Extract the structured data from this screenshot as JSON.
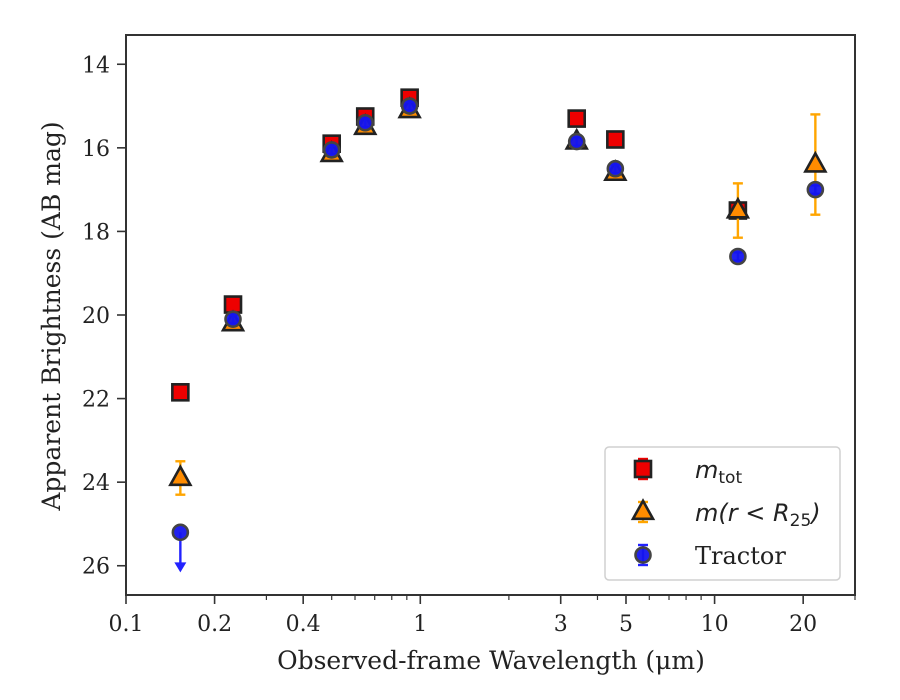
{
  "chart_data": {
    "type": "scatter",
    "xlabel": "Observed-frame Wavelength (μm)",
    "ylabel": "Apparent Brightness (AB mag)",
    "x_scale": "log",
    "xlim": [
      0.1,
      30
    ],
    "ylim": [
      26.7,
      13.3
    ],
    "y_inverted": true,
    "x_ticks": [
      0.1,
      0.2,
      0.4,
      1,
      3,
      5,
      10,
      20
    ],
    "x_tick_labels": [
      "0.1",
      "0.2",
      "0.4",
      "1",
      "3",
      "5",
      "10",
      "20"
    ],
    "y_ticks": [
      14,
      16,
      18,
      20,
      22,
      24,
      26
    ],
    "y_tick_labels": [
      "14",
      "16",
      "18",
      "20",
      "22",
      "24",
      "26"
    ],
    "legend_position": "lower-right",
    "series": [
      {
        "name": "m_tot",
        "legend": {
          "symbol": "m",
          "subscript": "tot"
        },
        "marker": "square",
        "face_color": "#ee0000",
        "edge_color": "#222222",
        "error_color": "#ee0000",
        "points": [
          {
            "x": 0.153,
            "y": 21.85,
            "err": 0.1
          },
          {
            "x": 0.231,
            "y": 19.75,
            "err": 0.1
          },
          {
            "x": 0.5,
            "y": 15.9,
            "err": 0.1
          },
          {
            "x": 0.65,
            "y": 15.25,
            "err": 0.1
          },
          {
            "x": 0.92,
            "y": 14.8,
            "err": 0.1
          },
          {
            "x": 3.4,
            "y": 15.3,
            "err": 0.1
          },
          {
            "x": 4.6,
            "y": 15.8,
            "err": 0.1
          },
          {
            "x": 12.0,
            "y": 17.5,
            "err": 0.1
          }
        ]
      },
      {
        "name": "m(r < R25)",
        "legend": {
          "prefix": "m(r < R",
          "subscript": "25",
          "suffix": ")"
        },
        "marker": "triangle",
        "face_color": "#ff8c00",
        "edge_color": "#222222",
        "error_color": "#ffa500",
        "points": [
          {
            "x": 0.153,
            "y": 23.9,
            "err": 0.4
          },
          {
            "x": 0.231,
            "y": 20.2,
            "err": 0.1
          },
          {
            "x": 0.5,
            "y": 16.15,
            "err": 0.1
          },
          {
            "x": 0.65,
            "y": 15.5,
            "err": 0.1
          },
          {
            "x": 0.92,
            "y": 15.1,
            "err": 0.1
          },
          {
            "x": 3.4,
            "y": 15.85,
            "err": 0.1
          },
          {
            "x": 4.6,
            "y": 16.6,
            "err": 0.1
          },
          {
            "x": 12.0,
            "y": 17.5,
            "err": 0.65
          },
          {
            "x": 22.0,
            "y": 16.4,
            "err": 1.2
          }
        ]
      },
      {
        "name": "Tractor",
        "legend": {
          "label": "Tractor"
        },
        "marker": "circle",
        "face_color": "#1515ee",
        "edge_color": "#444444",
        "error_color": "#2222ff",
        "points": [
          {
            "x": 0.153,
            "y": 25.2,
            "err": 0,
            "upper_limit": true
          },
          {
            "x": 0.231,
            "y": 20.1,
            "err": 0.1
          },
          {
            "x": 0.5,
            "y": 16.05,
            "err": 0.1
          },
          {
            "x": 0.65,
            "y": 15.4,
            "err": 0.1
          },
          {
            "x": 0.92,
            "y": 15.0,
            "err": 0.1
          },
          {
            "x": 3.4,
            "y": 15.85,
            "err": 0.1
          },
          {
            "x": 4.6,
            "y": 16.5,
            "err": 0.1
          },
          {
            "x": 12.0,
            "y": 18.6,
            "err": 0.1
          },
          {
            "x": 22.0,
            "y": 17.0,
            "err": 0.1
          }
        ]
      }
    ]
  }
}
